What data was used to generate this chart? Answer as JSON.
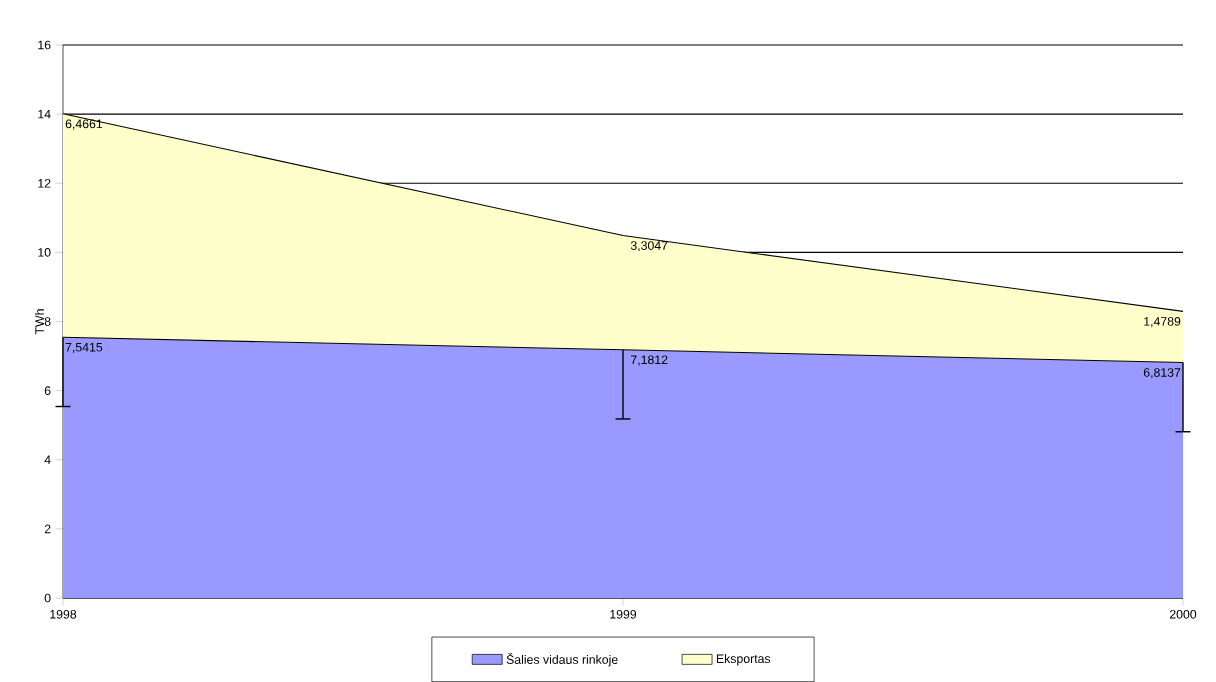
{
  "chart_data": {
    "type": "area",
    "ylabel": "TWh",
    "categories": [
      "1998",
      "1999",
      "2000"
    ],
    "stacked": true,
    "ylim": [
      0,
      16
    ],
    "yticks": [
      0,
      2,
      4,
      6,
      8,
      10,
      12,
      14,
      16
    ],
    "grid": "y",
    "legend": "bottom",
    "series": [
      {
        "name": "Šalies vidaus rinkoje",
        "color": "#9999ff",
        "values": [
          7.5415,
          7.1812,
          6.8137
        ],
        "value_labels": [
          "7,5415",
          "7,1812",
          "6,8137"
        ],
        "errors": [
          [
            5.54,
            7.5415
          ],
          [
            5.18,
            7.1812
          ],
          [
            4.81,
            6.8137
          ]
        ]
      },
      {
        "name": "Eksportas",
        "color": "#ffffcc",
        "values": [
          6.4661,
          3.3047,
          1.4789
        ],
        "value_labels": [
          "6,4661",
          "3,3047",
          "1,4789"
        ]
      }
    ]
  }
}
